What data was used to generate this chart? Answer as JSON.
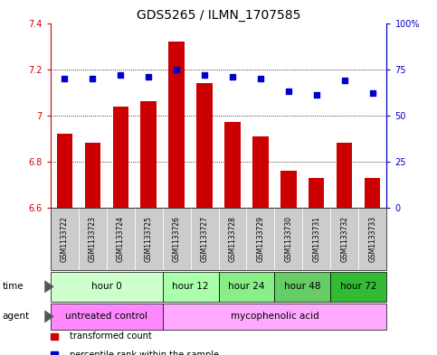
{
  "title": "GDS5265 / ILMN_1707585",
  "samples": [
    "GSM1133722",
    "GSM1133723",
    "GSM1133724",
    "GSM1133725",
    "GSM1133726",
    "GSM1133727",
    "GSM1133728",
    "GSM1133729",
    "GSM1133730",
    "GSM1133731",
    "GSM1133732",
    "GSM1133733"
  ],
  "bar_values": [
    6.92,
    6.88,
    7.04,
    7.06,
    7.32,
    7.14,
    6.97,
    6.91,
    6.76,
    6.73,
    6.88,
    6.73
  ],
  "percentile_values": [
    70,
    70,
    72,
    71,
    75,
    72,
    71,
    70,
    63,
    61,
    69,
    62
  ],
  "ylim": [
    6.6,
    7.4
  ],
  "yticks": [
    6.6,
    6.8,
    7.0,
    7.2,
    7.4
  ],
  "ytick_labels": [
    "6.6",
    "6.8",
    "7",
    "7.2",
    "7.4"
  ],
  "y2lim": [
    0,
    100
  ],
  "y2ticks": [
    0,
    25,
    50,
    75,
    100
  ],
  "y2tick_labels": [
    "0",
    "25",
    "50",
    "75",
    "100%"
  ],
  "bar_color": "#cc0000",
  "dot_color": "#0000cc",
  "bar_baseline": 6.6,
  "time_groups": [
    {
      "label": "hour 0",
      "start": 0,
      "end": 4,
      "color": "#ccffcc"
    },
    {
      "label": "hour 12",
      "start": 4,
      "end": 6,
      "color": "#aaffaa"
    },
    {
      "label": "hour 24",
      "start": 6,
      "end": 8,
      "color": "#88ee88"
    },
    {
      "label": "hour 48",
      "start": 8,
      "end": 10,
      "color": "#66cc66"
    },
    {
      "label": "hour 72",
      "start": 10,
      "end": 12,
      "color": "#33bb33"
    }
  ],
  "agent_groups": [
    {
      "label": "untreated control",
      "start": 0,
      "end": 4,
      "color": "#ff88ff"
    },
    {
      "label": "mycophenolic acid",
      "start": 4,
      "end": 12,
      "color": "#ffaaff"
    }
  ],
  "legend_items": [
    {
      "label": "transformed count",
      "color": "#cc0000"
    },
    {
      "label": "percentile rank within the sample",
      "color": "#0000cc"
    }
  ],
  "grid_yticks": [
    6.8,
    7.0,
    7.2
  ],
  "sample_bg_color": "#cccccc",
  "background_color": "#ffffff",
  "title_fontsize": 10,
  "tick_fontsize": 7,
  "sample_fontsize": 5.5,
  "row_fontsize": 7.5,
  "legend_fontsize": 7
}
